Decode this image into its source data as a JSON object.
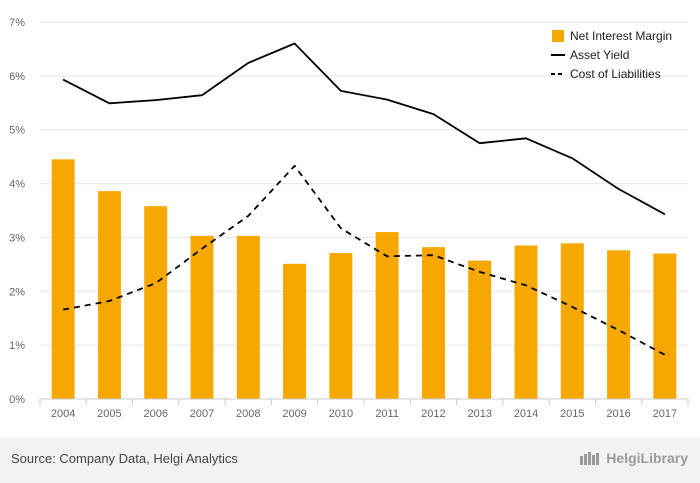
{
  "chart_data": {
    "type": "bar+line",
    "categories": [
      "2004",
      "2005",
      "2006",
      "2007",
      "2008",
      "2009",
      "2010",
      "2011",
      "2012",
      "2013",
      "2014",
      "2015",
      "2016",
      "2017"
    ],
    "series": [
      {
        "name": "Net Interest Margin",
        "type": "bar",
        "color": "#f7a800",
        "values": [
          4.45,
          3.86,
          3.58,
          3.03,
          3.03,
          2.51,
          2.71,
          3.1,
          2.82,
          2.57,
          2.85,
          2.89,
          2.76,
          2.7
        ]
      },
      {
        "name": "Asset Yield",
        "type": "line",
        "style": "solid",
        "color": "#000000",
        "values": [
          5.93,
          5.49,
          5.55,
          5.64,
          6.24,
          6.6,
          5.72,
          5.56,
          5.29,
          4.75,
          4.84,
          4.47,
          3.9,
          3.43
        ]
      },
      {
        "name": "Cost of Liabilities",
        "type": "line",
        "style": "dashed",
        "color": "#000000",
        "values": [
          1.66,
          1.82,
          2.15,
          2.79,
          3.4,
          4.33,
          3.17,
          2.65,
          2.67,
          2.36,
          2.11,
          1.71,
          1.28,
          0.82
        ]
      }
    ],
    "y_ticks": [
      "0%",
      "1%",
      "2%",
      "3%",
      "4%",
      "5%",
      "6%",
      "7%"
    ],
    "ylim": [
      0,
      7
    ],
    "grid": true,
    "legend_position": "top-right"
  },
  "footer": {
    "source": "Source: Company Data, Helgi Analytics",
    "brand": "HelgiLibrary"
  }
}
